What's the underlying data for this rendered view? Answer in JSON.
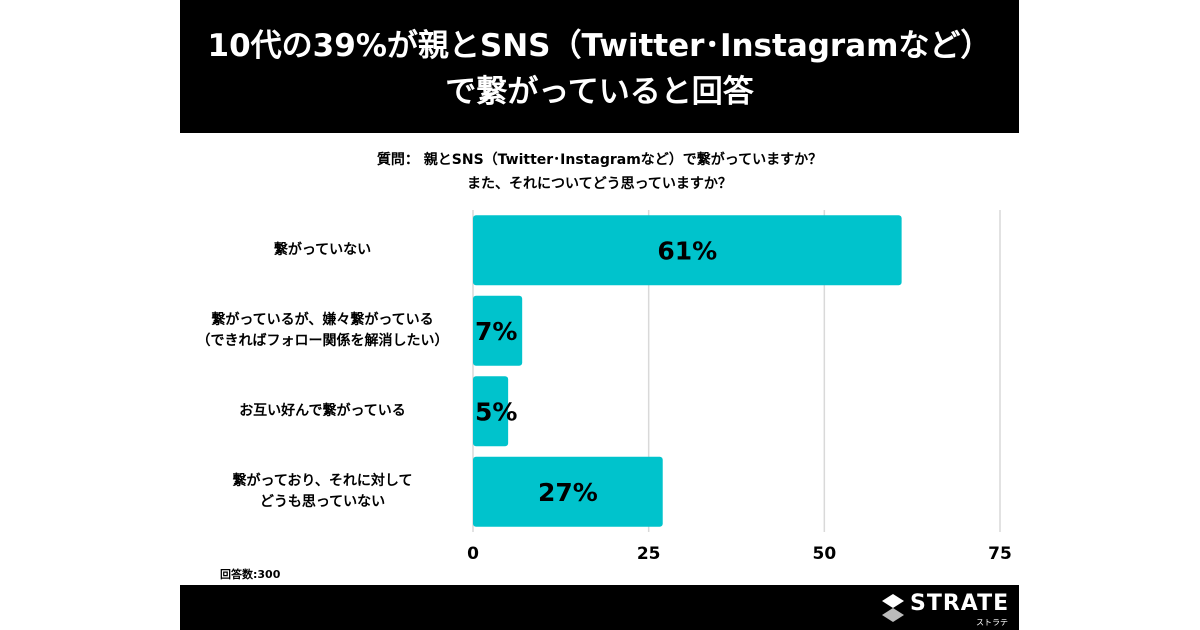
{
  "title": {
    "line1": "10代の39%が親とSNS（Twitter･Instagramなど）",
    "line2": "で繋がっていると回答"
  },
  "question": {
    "line1": "質問： 親とSNS（Twitter･Instagramなど）で繋がっていますか？",
    "line2": "また、それについてどう思っていますか？"
  },
  "footnote": "回答数:300",
  "logo": {
    "name": "STRATE",
    "sub": "ストラテ"
  },
  "colors": {
    "bar": "#00c3cc",
    "grid": "#d9d9d9",
    "title_bg": "#000000"
  },
  "chart_data": {
    "type": "bar",
    "orientation": "horizontal",
    "categories": [
      [
        "繋がっていない"
      ],
      [
        "繋がっているが、嫌々繋がっている",
        "（できればフォロー関係を解消したい）"
      ],
      [
        "お互い好んで繋がっている"
      ],
      [
        "繋がっており、それに対して",
        "どうも思っていない"
      ]
    ],
    "values": [
      61,
      7,
      5,
      27
    ],
    "data_labels": [
      "61%",
      "7%",
      "5%",
      "27%"
    ],
    "xlim": [
      0,
      75
    ],
    "xticks": [
      0,
      25,
      50,
      75
    ],
    "grid": true
  }
}
